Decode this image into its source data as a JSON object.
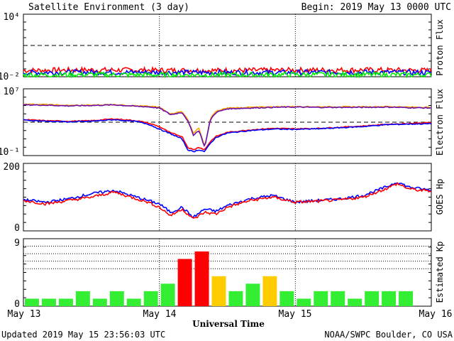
{
  "header": {
    "title": "Satellite Environment (3 day)",
    "begin": "Begin:  2019 May 13 0000 UTC"
  },
  "footer": {
    "updated": "Updated 2019 May 15 23:56:03 UTC",
    "credit": "NOAA/SWPC Boulder, CO USA"
  },
  "xaxis": {
    "label": "Universal Time",
    "ticks": [
      "May 13",
      "May 14",
      "May 15",
      "May 16"
    ]
  },
  "colors": {
    "red": "#ff0000",
    "blue": "#0000ff",
    "green": "#00ee00",
    "orange": "#ffa500",
    "purple": "#6a0dad",
    "kp_green": "#33ee33",
    "kp_yellow": "#ffcc00",
    "kp_red": "#ff0000"
  },
  "chart_data": [
    {
      "type": "line",
      "ylabel": "Proton Flux",
      "yscale": "log",
      "ylim": [
        0.01,
        10000
      ],
      "ytick_labels": [
        "10⁴",
        "10⁻²"
      ],
      "threshold": 10,
      "x_hours": [
        0,
        12,
        24,
        36,
        48,
        60,
        72
      ],
      "series": [
        {
          "color": "red",
          "values": [
            0.04,
            0.045,
            0.042,
            0.04,
            0.043,
            0.045,
            0.04
          ]
        },
        {
          "color": "blue",
          "values": [
            0.025,
            0.027,
            0.026,
            0.025,
            0.026,
            0.027,
            0.025
          ]
        },
        {
          "color": "green",
          "values": [
            0.015,
            0.016,
            0.015,
            0.015,
            0.016,
            0.016,
            0.015
          ]
        }
      ]
    },
    {
      "type": "line",
      "ylabel": "Electron Flux",
      "yscale": "log",
      "ylim": [
        0.1,
        10000000
      ],
      "ytick_labels": [
        "10⁷",
        "10⁻¹"
      ],
      "threshold": 1000,
      "x_hours": [
        0,
        4,
        8,
        12,
        16,
        20,
        22,
        24,
        26,
        28,
        29,
        30,
        31,
        32,
        33,
        34,
        36,
        40,
        44,
        48,
        52,
        56,
        60,
        64,
        68,
        72
      ],
      "series": [
        {
          "color": "orange",
          "values": [
            150000,
            130000,
            100000,
            110000,
            130000,
            90000,
            80000,
            60000,
            10000,
            20000,
            2000,
            50,
            200,
            1,
            3000,
            20000,
            50000,
            60000,
            70000,
            75000,
            70000,
            70000,
            70000,
            75000,
            65000,
            60000
          ]
        },
        {
          "color": "purple",
          "values": [
            120000,
            110000,
            90000,
            100000,
            120000,
            80000,
            70000,
            50000,
            8000,
            15000,
            1500,
            30,
            100,
            1,
            2000,
            15000,
            40000,
            50000,
            60000,
            65000,
            60000,
            60000,
            60000,
            65000,
            55000,
            50000
          ]
        },
        {
          "color": "red",
          "values": [
            2000,
            1500,
            1300,
            1500,
            2500,
            1500,
            800,
            300,
            50,
            20,
            1,
            0.5,
            1,
            0.5,
            5,
            20,
            60,
            120,
            180,
            160,
            180,
            250,
            350,
            550,
            700,
            900
          ]
        },
        {
          "color": "blue",
          "values": [
            1800,
            1300,
            1100,
            1300,
            2000,
            1200,
            600,
            150,
            40,
            10,
            0.5,
            0.3,
            0.5,
            0.3,
            3,
            15,
            50,
            100,
            150,
            140,
            160,
            220,
            300,
            500,
            600,
            650
          ]
        }
      ]
    },
    {
      "type": "line",
      "ylabel": "GOES Hp",
      "ylim": [
        0,
        200
      ],
      "ytick_labels": [
        "200",
        "0"
      ],
      "x_hours": [
        0,
        4,
        8,
        12,
        16,
        20,
        22,
        24,
        26,
        28,
        30,
        32,
        34,
        36,
        40,
        44,
        48,
        52,
        56,
        60,
        64,
        66,
        68,
        70,
        72
      ],
      "series": [
        {
          "color": "blue",
          "values": [
            92,
            85,
            95,
            110,
            120,
            100,
            90,
            80,
            55,
            70,
            40,
            65,
            58,
            75,
            95,
            105,
            85,
            90,
            95,
            105,
            130,
            145,
            130,
            125,
            120
          ]
        },
        {
          "color": "red",
          "values": [
            90,
            80,
            90,
            100,
            115,
            95,
            85,
            70,
            45,
            65,
            35,
            55,
            50,
            70,
            90,
            100,
            85,
            88,
            92,
            100,
            125,
            140,
            125,
            120,
            118
          ]
        }
      ]
    },
    {
      "type": "bar",
      "ylabel": "Estimated Kp",
      "ylim": [
        0,
        9
      ],
      "ytick_labels": [
        "9",
        "0"
      ],
      "values": [
        1,
        1,
        1,
        2,
        1,
        2,
        1,
        2,
        3,
        6.3,
        7.3,
        4,
        2,
        3,
        4,
        2,
        1,
        2,
        2,
        1,
        2,
        2,
        2
      ],
      "bar_colors": [
        "kp_green",
        "kp_green",
        "kp_green",
        "kp_green",
        "kp_green",
        "kp_green",
        "kp_green",
        "kp_green",
        "kp_green",
        "kp_red",
        "kp_red",
        "kp_yellow",
        "kp_green",
        "kp_green",
        "kp_yellow",
        "kp_green",
        "kp_green",
        "kp_green",
        "kp_green",
        "kp_green",
        "kp_green",
        "kp_green",
        "kp_green"
      ]
    }
  ]
}
